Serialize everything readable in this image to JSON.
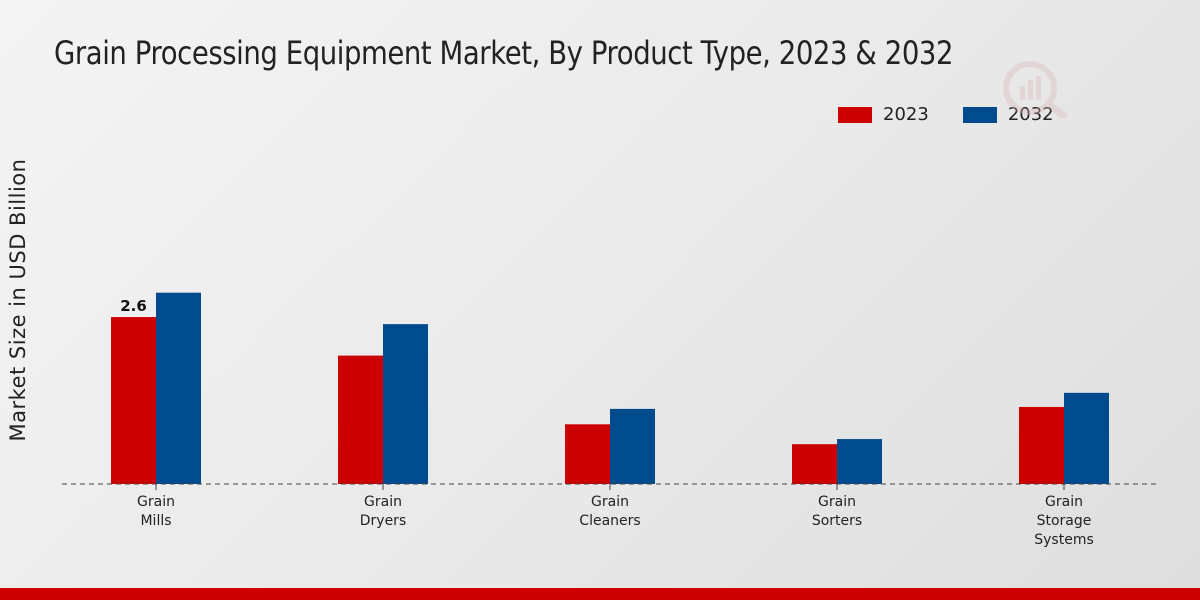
{
  "chart_data": {
    "type": "bar",
    "title": "Grain Processing Equipment Market, By Product Type, 2023 & 2032",
    "xlabel": "",
    "ylabel": "Market Size in USD Billion",
    "categories": [
      [
        "Grain",
        "Mills"
      ],
      [
        "Grain",
        "Dryers"
      ],
      [
        "Grain",
        "Cleaners"
      ],
      [
        "Grain",
        "Sorters"
      ],
      [
        "Grain",
        "Storage",
        "Systems"
      ]
    ],
    "series": [
      {
        "name": "2023",
        "color": "#cc0000",
        "values": [
          2.6,
          2.0,
          0.93,
          0.62,
          1.2
        ]
      },
      {
        "name": "2032",
        "color": "#004b8d",
        "values": [
          2.98,
          2.49,
          1.17,
          0.7,
          1.42
        ]
      }
    ],
    "ylim": [
      0,
      4.5
    ],
    "grid": false,
    "legend_position": "top-right",
    "data_labels": [
      {
        "series": 0,
        "index": 0,
        "text": "2.6"
      }
    ]
  }
}
